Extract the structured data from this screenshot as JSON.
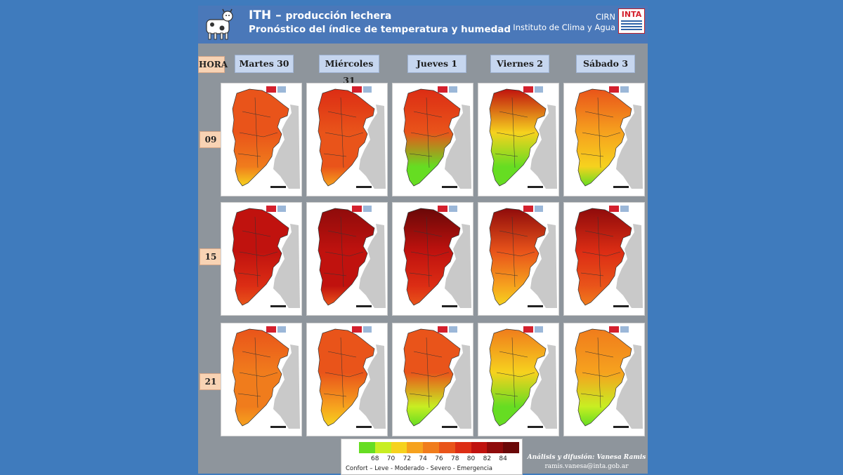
{
  "header": {
    "title_main": "ITH",
    "title_rest": "producción lechera",
    "subtitle": "Pronóstico del índice de temperatura y humedad",
    "org_line1": "CIRN",
    "org_line2": "Instituto de Clima y Agua",
    "logo_text": "INTA",
    "icon": "cow-icon"
  },
  "hour_header": "HORA",
  "days": [
    "Martes 30",
    "Miércoles 31",
    "Jueves 1",
    "Viernes 2",
    "Sábado 3"
  ],
  "hours": [
    "09",
    "15",
    "21"
  ],
  "legend": {
    "values": [
      "68",
      "70",
      "72",
      "74",
      "76",
      "78",
      "80",
      "82",
      "84"
    ],
    "colors": [
      "#66dd22",
      "#c8ee22",
      "#f6d21e",
      "#f6a21e",
      "#f07c1c",
      "#e9541a",
      "#dc2d14",
      "#c0120e",
      "#8f0b0b",
      "#6a0808"
    ],
    "classes": "Confort – Leve - Moderado - Severo -   Emergencia"
  },
  "credits": {
    "line1": "Análisis y difusión: Vanesa Ramis",
    "line2": "ramis.vanesa@inta.gob.ar"
  },
  "map_levels": {
    "description_note_excluded": true,
    "rows": [
      [
        [
          0.5,
          0.5,
          0.4
        ],
        [
          0.7,
          0.55,
          0.5
        ],
        [
          0.7,
          0.5,
          0.05
        ],
        [
          0.75,
          0.2,
          0.0
        ],
        [
          0.55,
          0.35,
          0.2
        ]
      ],
      [
        [
          0.8,
          0.75,
          0.7
        ],
        [
          0.85,
          0.8,
          0.75
        ],
        [
          0.95,
          0.8,
          0.7
        ],
        [
          0.9,
          0.6,
          0.35
        ],
        [
          0.85,
          0.7,
          0.6
        ]
      ],
      [
        [
          0.5,
          0.45,
          0.45
        ],
        [
          0.55,
          0.5,
          0.35
        ],
        [
          0.6,
          0.5,
          0.1
        ],
        [
          0.45,
          0.2,
          0.0
        ],
        [
          0.45,
          0.3,
          0.15
        ]
      ]
    ]
  }
}
